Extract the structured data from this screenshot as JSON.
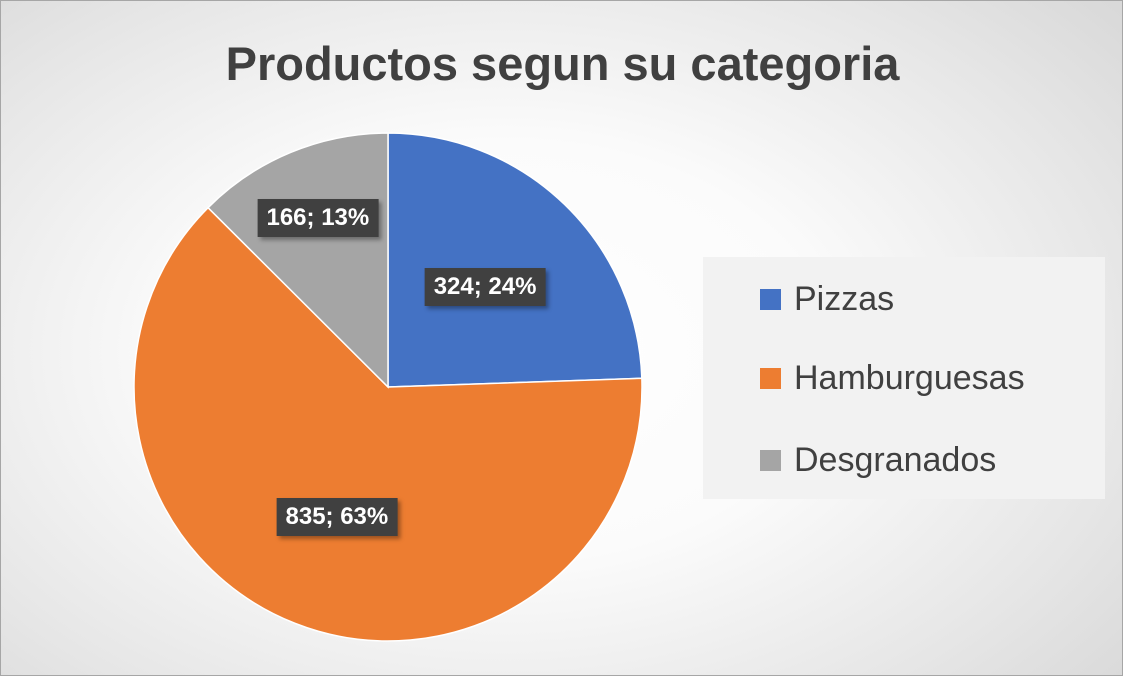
{
  "chart_data": {
    "type": "pie",
    "title": "Productos segun su categoria",
    "categories": [
      "Pizzas",
      "Hamburguesas",
      "Desgranados"
    ],
    "values": [
      324,
      835,
      166
    ],
    "percentages": [
      "24%",
      "63%",
      "13%"
    ],
    "data_labels": [
      "324; 24%",
      "835; 63%",
      "166; 13%"
    ],
    "colors": [
      "#4472c4",
      "#ed7d31",
      "#a5a5a5"
    ],
    "legend_position": "right",
    "start_angle_deg": 0,
    "direction": "clockwise"
  }
}
